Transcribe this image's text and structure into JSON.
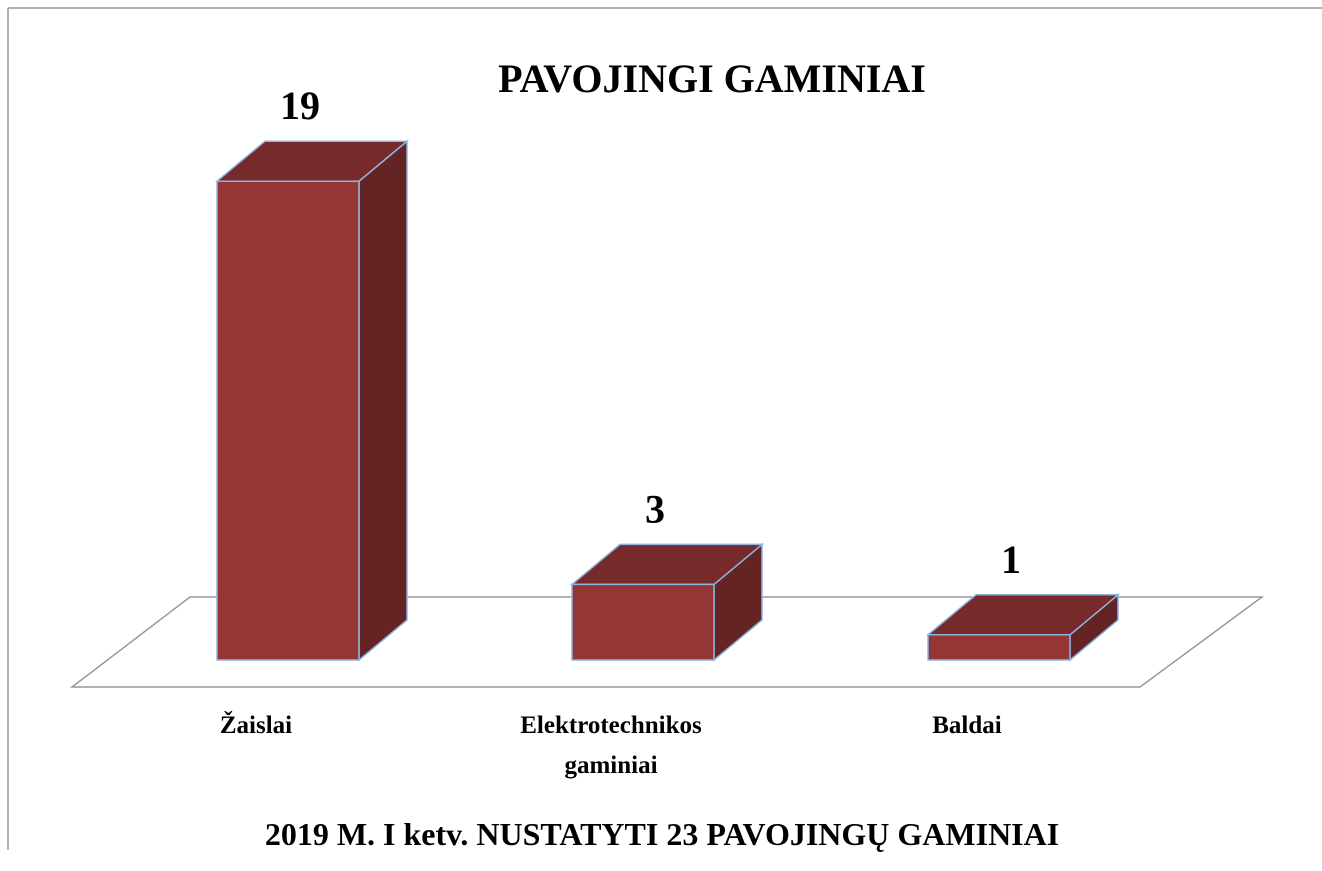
{
  "chart_data": {
    "type": "bar3d",
    "title": "PAVOJINGI GAMINIAI",
    "subtitle": "2019 M. I ketv. NUSTATYTI 23 PAVOJINGŲ GAMINIAI",
    "categories": [
      "Žaislai",
      "Elektrotechnikos gaminiai",
      "Baldai"
    ],
    "values": [
      19,
      3,
      1
    ],
    "color": "#943634"
  }
}
